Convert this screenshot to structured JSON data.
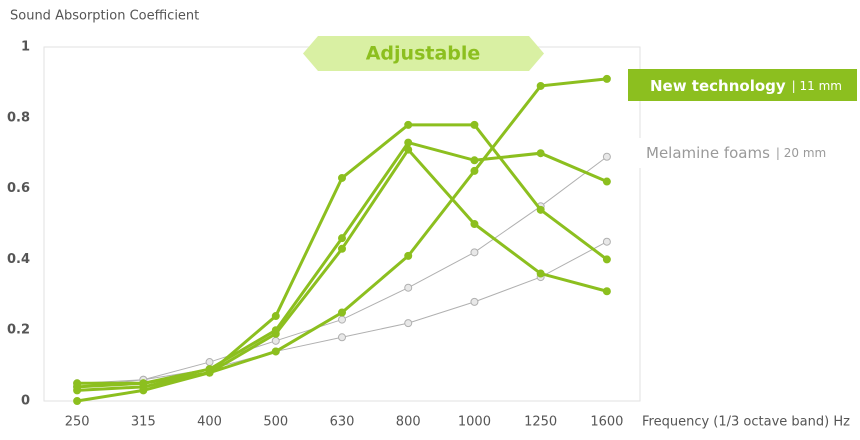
{
  "chart_data": {
    "type": "line",
    "y_axis_label": "Sound Absorption Coefficient",
    "x_axis_label": "Frequency (1/3 octave band) Hz",
    "annotation": "Adjustable",
    "categories": [
      "250",
      "315",
      "400",
      "500",
      "630",
      "800",
      "1000",
      "1250",
      "1600"
    ],
    "ylim": [
      0,
      1
    ],
    "yticks": [
      0,
      0.2,
      0.4,
      0.6,
      0.8,
      1
    ],
    "legend": [
      {
        "label": "New technology",
        "detail": "| 11 mm",
        "color": "#8cbf1f"
      },
      {
        "label": "Melamine foams",
        "detail": "| 20 mm",
        "color": "#9a9a9a"
      }
    ],
    "series": [
      {
        "color": "#8cbf1f",
        "values": [
          0.04,
          0.05,
          0.08,
          0.24,
          0.63,
          0.78,
          0.78,
          0.54,
          0.4
        ]
      },
      {
        "color": "#8cbf1f",
        "values": [
          0.05,
          0.05,
          0.09,
          0.2,
          0.46,
          0.73,
          0.68,
          0.7,
          0.62
        ]
      },
      {
        "color": "#8cbf1f",
        "values": [
          0.03,
          0.04,
          0.08,
          0.19,
          0.43,
          0.71,
          0.5,
          0.36,
          0.31
        ]
      },
      {
        "color": "#8cbf1f",
        "values": [
          0.0,
          0.03,
          0.08,
          0.14,
          0.25,
          0.41,
          0.65,
          0.89,
          0.91
        ]
      },
      {
        "color": "#b0b0b0",
        "values": [
          0.04,
          0.06,
          0.11,
          0.17,
          0.23,
          0.32,
          0.42,
          0.55,
          0.69
        ]
      },
      {
        "color": "#b0b0b0",
        "values": [
          0.05,
          0.06,
          0.09,
          0.14,
          0.18,
          0.22,
          0.28,
          0.35,
          0.45
        ]
      }
    ]
  }
}
